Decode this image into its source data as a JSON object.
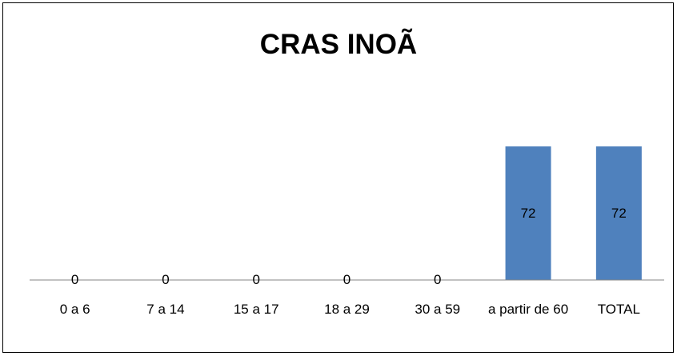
{
  "chart_data": {
    "type": "bar",
    "title": "CRAS INOÃ",
    "categories": [
      "0 a 6",
      "7 a 14",
      "15 a 17",
      "18 a 29",
      "30 a 59",
      "a partir de 60",
      "TOTAL"
    ],
    "values": [
      0,
      0,
      0,
      0,
      0,
      72,
      72
    ],
    "color": "#4f81bd"
  }
}
